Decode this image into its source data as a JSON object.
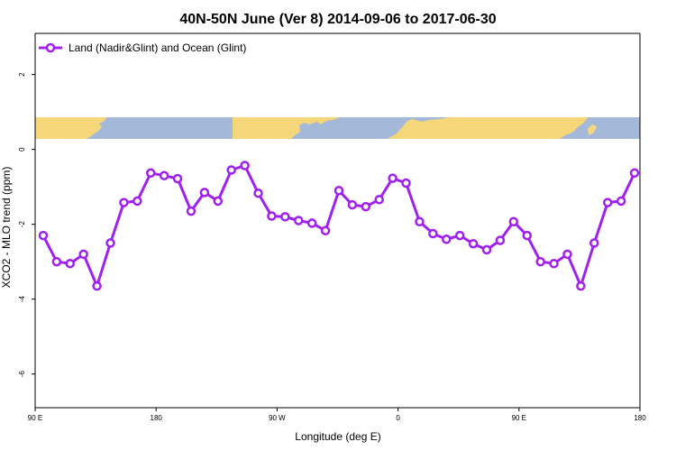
{
  "chart_data": {
    "type": "line",
    "title": "40N-50N June (Ver 8)   2014-09-06 to 2017-06-30",
    "xlabel": "Longitude (deg E)",
    "ylabel": "XCO2 - MLO trend (ppm)",
    "xlim": [
      90,
      540
    ],
    "ylim": [
      -6.9,
      3.1
    ],
    "x_ticks": [
      {
        "value": 90,
        "label": "90 E"
      },
      {
        "value": 180,
        "label": "180"
      },
      {
        "value": 270,
        "label": "90 W"
      },
      {
        "value": 360,
        "label": "0"
      },
      {
        "value": 450,
        "label": "90 E"
      },
      {
        "value": 540,
        "label": "180"
      }
    ],
    "y_ticks": [
      {
        "value": 2,
        "label": "2"
      },
      {
        "value": 0,
        "label": "0"
      },
      {
        "value": -2,
        "label": "-2"
      },
      {
        "value": -4,
        "label": "-4"
      },
      {
        "value": -6,
        "label": "-6"
      }
    ],
    "legend": {
      "position": "top-left"
    },
    "series": [
      {
        "name": "Land (Nadir&Glint) and Ocean (Glint)",
        "color": "#A020F0",
        "x": [
          96,
          106,
          116,
          126,
          136,
          146,
          156,
          166,
          176,
          186,
          196,
          206,
          216,
          226,
          236,
          246,
          256,
          266,
          276,
          286,
          296,
          306,
          316,
          326,
          336,
          346,
          356,
          366,
          376,
          386,
          396,
          406,
          416,
          426,
          436,
          446,
          456,
          466,
          476,
          486,
          496,
          506,
          516,
          526,
          536
        ],
        "values": [
          -2.3,
          -3.0,
          -3.05,
          -2.8,
          -3.65,
          -2.5,
          -1.42,
          -1.38,
          -0.63,
          -0.7,
          -0.78,
          -1.65,
          -1.15,
          -1.38,
          -0.55,
          -0.43,
          -1.17,
          -1.78,
          -1.8,
          -1.9,
          -1.97,
          -2.17,
          -1.1,
          -1.48,
          -1.53,
          -1.34,
          -0.77,
          -0.9,
          -1.93,
          -2.25,
          -2.4,
          -2.3,
          -2.52,
          -2.68,
          -2.43,
          -1.93,
          -2.3,
          -3.0,
          -3.05,
          -2.8,
          -3.65,
          -2.5,
          -1.42,
          -1.38,
          -0.63
        ]
      }
    ],
    "colors": {
      "ocean": "#A4B9DA",
      "land": "#F5D77A",
      "line": "#A020F0"
    }
  }
}
